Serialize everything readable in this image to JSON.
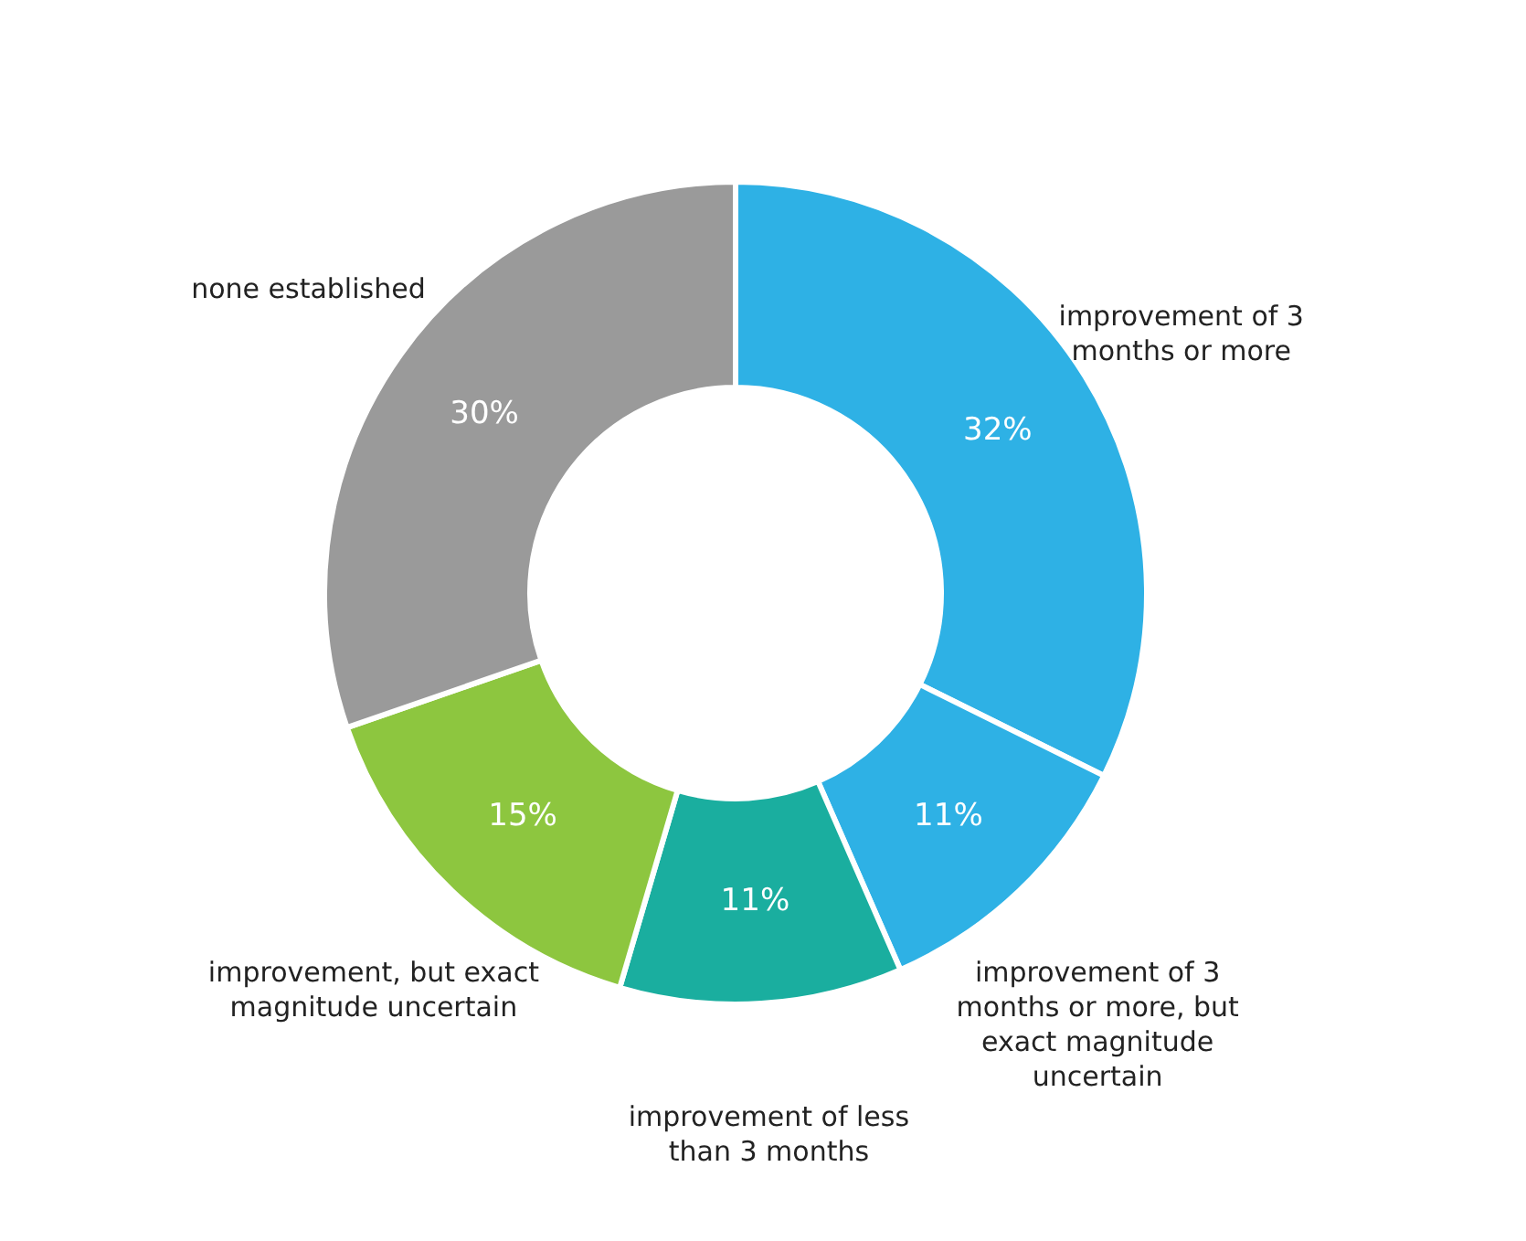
{
  "chart_data": {
    "type": "donut",
    "categories": [
      "improvement of 3 months or more",
      "improvement of 3 months or more, but exact magnitude uncertain",
      "improvement of less than 3 months",
      "improvement, but exact magnitude uncertain",
      "none established"
    ],
    "values": [
      32,
      11,
      11,
      15,
      30
    ],
    "colors": [
      "#2eb1e5",
      "#2eb1e5",
      "#1aae9f",
      "#8dc63f",
      "#9a9a9a"
    ],
    "value_labels": [
      "32%",
      "11%",
      "11%",
      "15%",
      "30%"
    ],
    "legend": false
  }
}
